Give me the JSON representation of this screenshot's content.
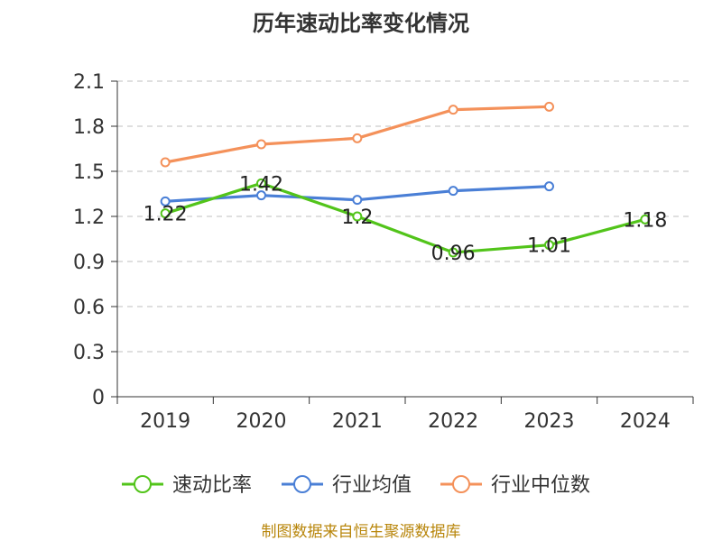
{
  "chart_data": {
    "type": "line",
    "title": "历年速动比率变化情况",
    "x": [
      "2019",
      "2020",
      "2021",
      "2022",
      "2023",
      "2024"
    ],
    "ylim": [
      0,
      2.1
    ],
    "yticks": [
      "0",
      "0.3",
      "0.6",
      "0.9",
      "1.2",
      "1.5",
      "1.8",
      "2.1"
    ],
    "grid": true,
    "legend_position": "bottom",
    "series": [
      {
        "name": "速动比率",
        "color": "#52c41a",
        "values": [
          1.22,
          1.42,
          1.2,
          0.96,
          1.01,
          1.18
        ],
        "labels": [
          "1.22",
          "1.42",
          "1.2",
          "0.96",
          "1.01",
          "1.18"
        ]
      },
      {
        "name": "行业均值",
        "color": "#4a7fd6",
        "values": [
          1.3,
          1.34,
          1.31,
          1.37,
          1.4,
          null
        ]
      },
      {
        "name": "行业中位数",
        "color": "#f4915a",
        "values": [
          1.56,
          1.68,
          1.72,
          1.91,
          1.93,
          null
        ]
      }
    ],
    "source": "制图数据来自恒生聚源数据库"
  }
}
